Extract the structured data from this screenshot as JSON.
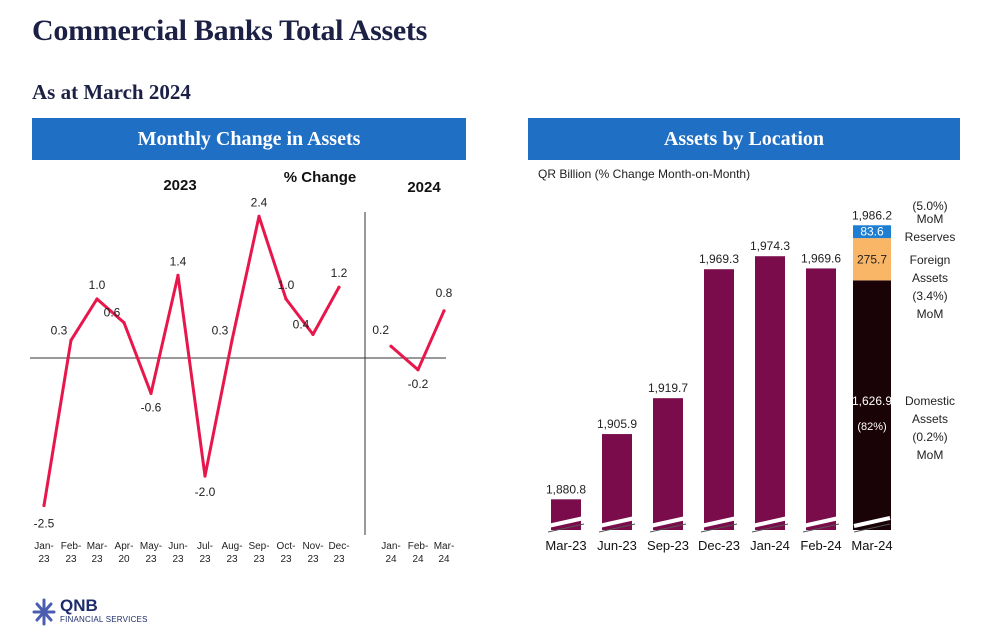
{
  "header": {
    "title": "Commercial Banks Total Assets",
    "subtitle": "As at March 2024"
  },
  "left_panel": {
    "banner": "Monthly Change in Assets",
    "year_2023": "2023",
    "year_2024": "2024",
    "metric_label": "% Change"
  },
  "right_panel": {
    "banner": "Assets by Location",
    "unit_label": "QR Billion (% Change Month-on-Month)",
    "total_note": "(5.0%)",
    "reserves_note": [
      "MoM",
      "Reserves"
    ],
    "foreign_note": [
      "Foreign",
      "Assets",
      "(3.4%)",
      "MoM"
    ],
    "domestic_note": [
      "Domestic",
      "Assets",
      "(0.2%)",
      "MoM"
    ],
    "domestic_share": "(82%)"
  },
  "logo": {
    "name": "QNB",
    "tagline": "FINANCIAL SERVICES"
  },
  "colors": {
    "banner": "#1f6fc5",
    "line": "#e8174b",
    "bar": "#7a0c4b",
    "domestic": "#1a0306",
    "foreign": "#f9b667",
    "reserves": "#1e7fd2",
    "title": "#1c2045"
  },
  "chart_data": [
    {
      "type": "line",
      "title": "Monthly Change in Assets",
      "ylabel": "% Change",
      "groups": [
        "2023",
        "2024"
      ],
      "ylim": [
        -2.6,
        2.6
      ],
      "grid": false,
      "series": [
        {
          "values": [
            -2.5,
            0.3,
            1.0,
            0.6,
            -0.6,
            1.4,
            -2.0,
            0.3,
            2.4,
            1.0,
            0.4,
            1.2
          ],
          "labels": [
            "-2.5",
            "0.3",
            "1.0",
            "0.6",
            "-0.6",
            "1.4",
            "-2.0",
            "0.3",
            "2.4",
            "1.0",
            "0.4",
            "1.2"
          ],
          "categories": [
            [
              "Jan-",
              "23"
            ],
            [
              "Feb-",
              "23"
            ],
            [
              "Mar-",
              "23"
            ],
            [
              "Apr-",
              "20"
            ],
            [
              "May-",
              "23"
            ],
            [
              "Jun-",
              "23"
            ],
            [
              "Jul-",
              "23"
            ],
            [
              "Aug-",
              "23"
            ],
            [
              "Sep-",
              "23"
            ],
            [
              "Oct-",
              "23"
            ],
            [
              "Nov-",
              "23"
            ],
            [
              "Dec-",
              "23"
            ]
          ]
        },
        {
          "values": [
            0.2,
            -0.2,
            0.8
          ],
          "labels": [
            "0.2",
            "-0.2",
            "0.8"
          ],
          "categories": [
            [
              "Jan-",
              "24"
            ],
            [
              "Feb-",
              "24"
            ],
            [
              "Mar-",
              "24"
            ]
          ]
        }
      ]
    },
    {
      "type": "bar",
      "title": "Assets by Location",
      "ylabel": "QR Billion (% Change Month-on-Month)",
      "categories": [
        "Mar-23",
        "Jun-23",
        "Sep-23",
        "Dec-23",
        "Jan-24",
        "Feb-24",
        "Mar-24"
      ],
      "values": [
        1880.8,
        1905.9,
        1919.7,
        1969.3,
        1974.3,
        1969.6,
        1986.2
      ],
      "labels": [
        "1,880.8",
        "1,905.9",
        "1,919.7",
        "1,969.3",
        "1,974.3",
        "1,969.6",
        "1,986.2"
      ],
      "axis_break": true,
      "stacked_last": [
        {
          "name": "Domestic Assets",
          "value": 1626.9,
          "label": "1,626.9"
        },
        {
          "name": "Foreign Assets",
          "value": 275.7,
          "label": "275.7"
        },
        {
          "name": "Reserves",
          "value": 83.6,
          "label": "83.6"
        }
      ]
    }
  ]
}
